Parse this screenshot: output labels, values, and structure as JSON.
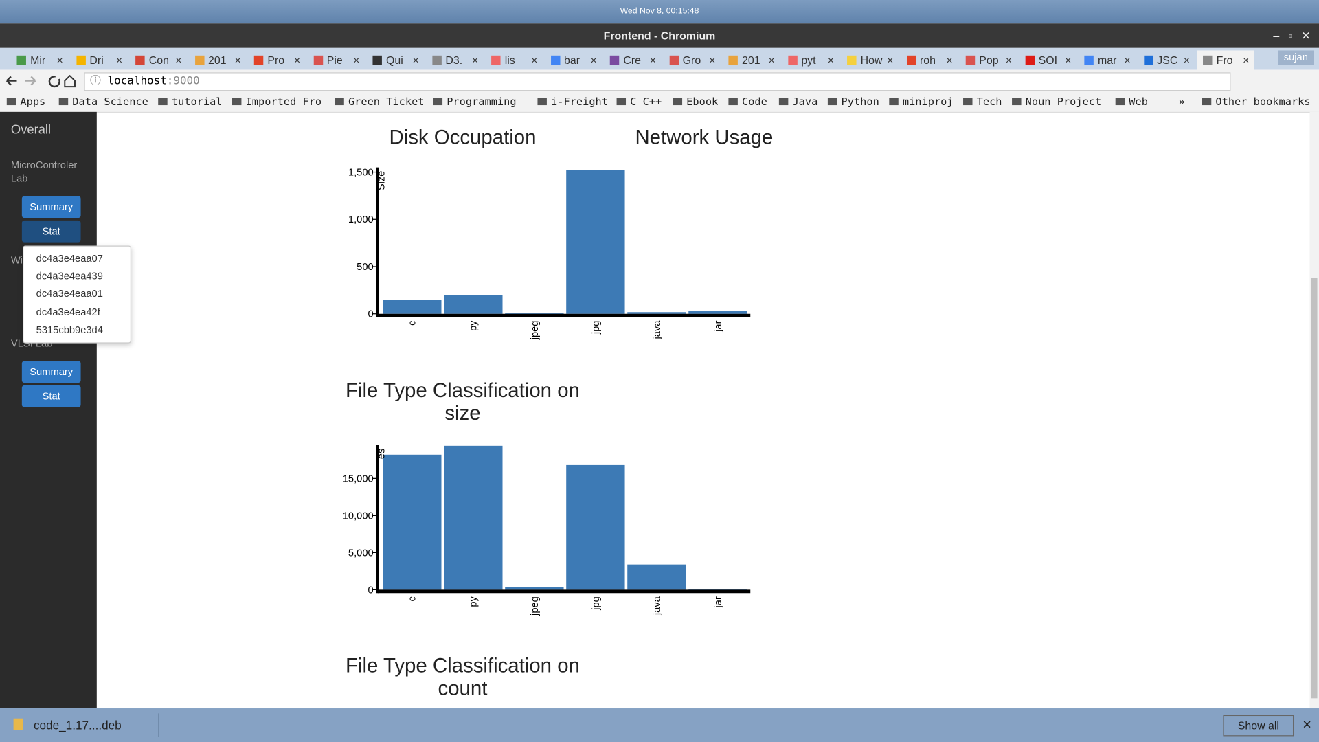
{
  "system_bar": {
    "clock": "Wed Nov  8, 00:15:48"
  },
  "window": {
    "title": "Frontend - Chromium",
    "profile": "sujan"
  },
  "tabs": [
    "Mir",
    "Dri",
    "Con",
    "201",
    "Pro",
    "Pie",
    "Qui",
    "D3.",
    "lis",
    "bar",
    "Cre",
    "Gro",
    "201",
    "pyt",
    "How",
    "roh",
    "Pop",
    "SOI",
    "mar",
    "JSC",
    "Fro"
  ],
  "address_bar": {
    "host": "localhost",
    "port": ":9000"
  },
  "bookmarks": {
    "items": [
      "Apps",
      "Data Science",
      "tutorial",
      "Imported Fro",
      "Green Ticket",
      "Programming",
      "i-Freight",
      "C C++",
      "Ebook",
      "Code",
      "Java",
      "Python",
      "miniproj",
      "Tech",
      "Noun Project",
      "Web"
    ],
    "more": "»",
    "other": "Other bookmarks"
  },
  "sidebar": {
    "overall": "Overall",
    "labs": [
      {
        "name": "MicroControler Lab",
        "buttons": [
          "Summary",
          "Stat"
        ]
      },
      {
        "name": "VLSI Lab",
        "buttons": [
          "Summary",
          "Stat"
        ]
      }
    ],
    "hidden_lab": "Wi",
    "dropdown": [
      "dc4a3e4eaa07",
      "dc4a3e4ea439",
      "dc4a3e4eaa01",
      "dc4a3e4ea42f",
      "5315cbb9e3d4"
    ]
  },
  "headings": {
    "disk": "Disk Occupation",
    "network": "Network Usage",
    "size": "File Type Classification on size",
    "count": "File Type Classification on count"
  },
  "chart_data": [
    {
      "type": "bar",
      "y_label": "Size",
      "color": "#3d7ab5",
      "categories": [
        "c",
        "py",
        "jpeg",
        "jpg",
        "java",
        "jar"
      ],
      "values": [
        150,
        195,
        10,
        1520,
        18,
        27
      ],
      "ylim": [
        0,
        1550
      ],
      "yticks": [
        0,
        500,
        {
          "value": 1000,
          "label": "1,000"
        },
        {
          "value": 1500,
          "label": "1,500"
        }
      ]
    },
    {
      "type": "bar",
      "y_label": "es",
      "color": "#3d7ab5",
      "categories": [
        "c",
        "py",
        "jpeg",
        "jpg",
        "java",
        "jar"
      ],
      "values": [
        18200,
        19400,
        340,
        16800,
        3400,
        50
      ],
      "ylim": [
        0,
        19500
      ],
      "yticks": [
        0,
        {
          "value": 5000,
          "label": "5,000"
        },
        {
          "value": 10000,
          "label": "10,000"
        },
        {
          "value": 15000,
          "label": "15,000"
        }
      ]
    }
  ],
  "downloads": {
    "file": "code_1.17....deb",
    "show_all": "Show all"
  }
}
